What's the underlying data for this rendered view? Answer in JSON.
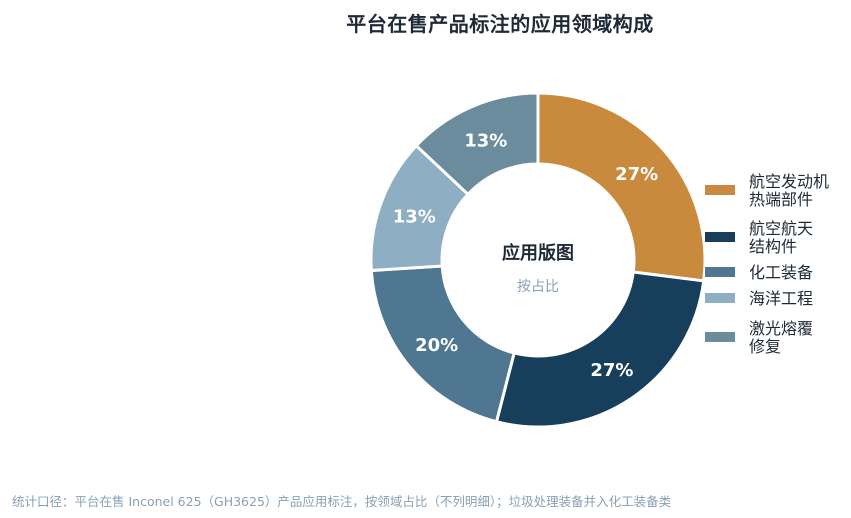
{
  "chart_data": {
    "type": "pie",
    "title": "平台在售产品标注的应用领域构成",
    "center_title": "应用版图",
    "center_subtitle": "按占比",
    "categories": [
      "航空发动机热端部件",
      "航空航天结构件",
      "化工装备",
      "海洋工程",
      "激光熔覆修复"
    ],
    "legend_lines": [
      [
        "航空发动机",
        "热端部件"
      ],
      [
        "航空航天",
        "结构件"
      ],
      [
        "化工装备"
      ],
      [
        "海洋工程"
      ],
      [
        "激光熔覆",
        "修复"
      ]
    ],
    "values": [
      27,
      27,
      20,
      13,
      13
    ],
    "value_labels": [
      "27%",
      "27%",
      "20%",
      "13%",
      "13%"
    ],
    "colors": [
      "#c98a3e",
      "#173f5b",
      "#4f7791",
      "#8daec3",
      "#6a8c9c"
    ],
    "legend_position": "right",
    "donut": true
  },
  "footer": "统计口径：平台在售 Inconel 625（GH3625）产品应用标注，按领域占比（不列明细）；垃圾处理装备并入化工装备类"
}
